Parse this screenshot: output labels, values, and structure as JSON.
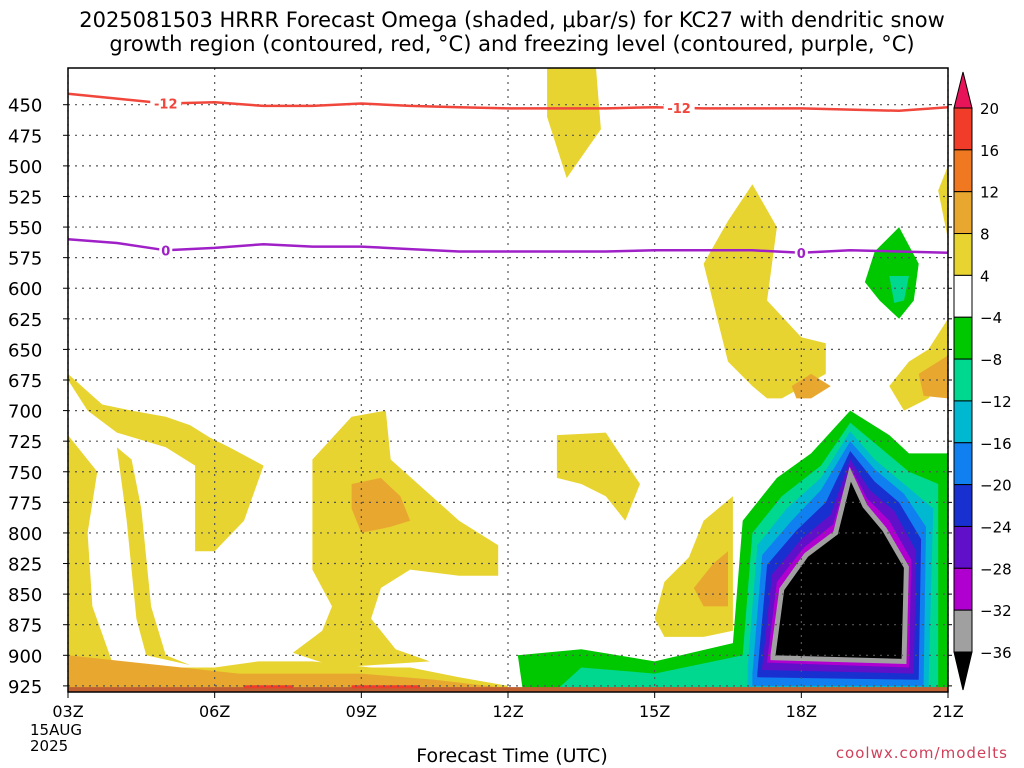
{
  "title_line1": "2025081503 HRRR Forecast Omega (shaded, μbar/s) for KC27 with dendritic snow",
  "title_line2": "growth region (contoured, red, °C) and freezing level (contoured, purple, °C)",
  "xlabel": "Forecast Time (UTC)",
  "credit": "coolwx.com/modelts",
  "date_label": [
    "15AUG",
    "2025"
  ],
  "colors": {
    "dgz_line": "#f0463c",
    "freeze_line": "#a020c8",
    "grid": "#555555"
  },
  "chart_data": {
    "type": "heatmap",
    "title": "2025081503 HRRR Forecast Omega (shaded, μbar/s) for KC27 with dendritic snow growth region (contoured, red, °C) and freezing level (contoured, purple, °C)",
    "xlabel": "Forecast Time (UTC)",
    "ylabel": "",
    "x_ticks": [
      "03Z",
      "06Z",
      "09Z",
      "12Z",
      "15Z",
      "18Z",
      "21Z"
    ],
    "x_hours": [
      3,
      6,
      9,
      12,
      15,
      18,
      21
    ],
    "y_ticks": [
      450,
      475,
      500,
      525,
      550,
      575,
      600,
      625,
      650,
      675,
      700,
      725,
      750,
      775,
      800,
      825,
      850,
      875,
      900,
      925
    ],
    "ylim": [
      420,
      930
    ],
    "grid": true,
    "colorbar": {
      "labels": [
        "20",
        "16",
        "12",
        "8",
        "4",
        "-4",
        "-8",
        "-12",
        "-16",
        "-20",
        "-24",
        "-28",
        "-32",
        "-36"
      ],
      "colors": [
        "#e8145a",
        "#f03c28",
        "#f07820",
        "#e8a830",
        "#e8d430",
        "#ffffff",
        "#00c800",
        "#00d890",
        "#00b8d0",
        "#1080f0",
        "#1830d0",
        "#6010c8",
        "#b000d0",
        "#a0a0a0",
        "#000000"
      ]
    },
    "contours": [
      {
        "label": "-12",
        "points": [
          [
            3,
            441
          ],
          [
            4,
            445
          ],
          [
            5,
            449
          ],
          [
            6,
            448
          ],
          [
            7,
            451
          ],
          [
            8,
            451
          ],
          [
            9,
            449
          ],
          [
            10,
            451
          ],
          [
            11,
            452
          ],
          [
            12,
            453
          ],
          [
            13,
            453
          ],
          [
            14,
            453
          ],
          [
            15,
            452
          ],
          [
            16,
            453
          ],
          [
            17,
            453
          ],
          [
            18,
            453
          ],
          [
            19,
            454
          ],
          [
            20,
            455
          ],
          [
            21,
            452
          ]
        ]
      },
      {
        "label": "0",
        "points": [
          [
            3,
            560
          ],
          [
            4,
            563
          ],
          [
            5,
            569
          ],
          [
            6,
            567
          ],
          [
            7,
            564
          ],
          [
            8,
            566
          ],
          [
            9,
            566
          ],
          [
            10,
            568
          ],
          [
            11,
            570
          ],
          [
            12,
            570
          ],
          [
            13,
            570
          ],
          [
            14,
            570
          ],
          [
            15,
            569
          ],
          [
            16,
            569
          ],
          [
            17,
            569
          ],
          [
            18,
            571
          ],
          [
            19,
            569
          ],
          [
            20,
            570
          ],
          [
            21,
            571
          ]
        ]
      }
    ],
    "regions": [
      {
        "level": "4",
        "points": [
          [
            3,
            675
          ],
          [
            3.4,
            700
          ],
          [
            4,
            718
          ],
          [
            5,
            730
          ],
          [
            5.6,
            745
          ],
          [
            5.6,
            815
          ],
          [
            6,
            815
          ],
          [
            6.6,
            790
          ],
          [
            7,
            745
          ],
          [
            6.3,
            730
          ],
          [
            5.9,
            722
          ],
          [
            5.5,
            712
          ],
          [
            5,
            705
          ],
          [
            4.3,
            700
          ],
          [
            3.7,
            695
          ],
          [
            3,
            670
          ]
        ]
      },
      {
        "level": "4",
        "points": [
          [
            3,
            720
          ],
          [
            3.6,
            750
          ],
          [
            3.4,
            800
          ],
          [
            3.5,
            860
          ],
          [
            3.9,
            905
          ],
          [
            5,
            910
          ],
          [
            6,
            910
          ],
          [
            6.9,
            905
          ],
          [
            8,
            905
          ],
          [
            9.2,
            910
          ],
          [
            10,
            910
          ],
          [
            11,
            918
          ],
          [
            12,
            925
          ],
          [
            12,
            928
          ],
          [
            3,
            928
          ]
        ]
      },
      {
        "level": "4",
        "points": [
          [
            4,
            730
          ],
          [
            4.2,
            790
          ],
          [
            4.4,
            870
          ],
          [
            4.6,
            900
          ],
          [
            5.5,
            908
          ],
          [
            5,
            900
          ],
          [
            4.7,
            860
          ],
          [
            4.5,
            780
          ],
          [
            4.3,
            740
          ]
        ]
      },
      {
        "level": "4",
        "points": [
          [
            8,
            740
          ],
          [
            8.8,
            705
          ],
          [
            9.5,
            700
          ],
          [
            9.6,
            740
          ],
          [
            10.3,
            765
          ],
          [
            11,
            790
          ],
          [
            11.8,
            810
          ],
          [
            11.8,
            835
          ],
          [
            11,
            835
          ],
          [
            10,
            830
          ],
          [
            9.4,
            845
          ],
          [
            9.2,
            870
          ],
          [
            9.7,
            895
          ],
          [
            10.4,
            905
          ],
          [
            8.5,
            910
          ],
          [
            7.6,
            898
          ],
          [
            8.2,
            880
          ],
          [
            8.4,
            860
          ],
          [
            8,
            830
          ],
          [
            8,
            790
          ]
        ]
      },
      {
        "level": "4",
        "points": [
          [
            13.8,
            420
          ],
          [
            13.9,
            470
          ],
          [
            13.2,
            510
          ],
          [
            12.8,
            460
          ],
          [
            12.8,
            420
          ]
        ]
      },
      {
        "level": "4",
        "points": [
          [
            13,
            720
          ],
          [
            14,
            718
          ],
          [
            14.7,
            760
          ],
          [
            14.4,
            790
          ],
          [
            14,
            770
          ],
          [
            13.5,
            760
          ],
          [
            13,
            755
          ]
        ]
      },
      {
        "level": "4",
        "points": [
          [
            16,
            580
          ],
          [
            16.5,
            545
          ],
          [
            17,
            515
          ],
          [
            17.5,
            550
          ],
          [
            17.3,
            610
          ],
          [
            18,
            640
          ],
          [
            18.5,
            645
          ],
          [
            18.5,
            670
          ],
          [
            17.6,
            690
          ],
          [
            17.3,
            690
          ],
          [
            17,
            680
          ],
          [
            16.5,
            660
          ]
        ]
      },
      {
        "level": "4",
        "points": [
          [
            15,
            870
          ],
          [
            15.2,
            840
          ],
          [
            15.7,
            820
          ],
          [
            16,
            790
          ],
          [
            16.6,
            770
          ],
          [
            16.6,
            880
          ],
          [
            16,
            885
          ],
          [
            15.2,
            885
          ]
        ]
      },
      {
        "level": "4",
        "points": [
          [
            21,
            500
          ],
          [
            20.8,
            520
          ],
          [
            21,
            560
          ],
          [
            21,
            625
          ],
          [
            20.6,
            650
          ],
          [
            20.2,
            660
          ],
          [
            19.8,
            680
          ],
          [
            20.1,
            700
          ],
          [
            20.6,
            690
          ],
          [
            21,
            670
          ],
          [
            21,
            505
          ]
        ]
      },
      {
        "level": "8",
        "points": [
          [
            17.8,
            680
          ],
          [
            18.2,
            670
          ],
          [
            18.6,
            680
          ],
          [
            18.2,
            690
          ],
          [
            17.9,
            690
          ]
        ]
      },
      {
        "level": "8",
        "points": [
          [
            8.8,
            760
          ],
          [
            9.4,
            755
          ],
          [
            9.8,
            770
          ],
          [
            10,
            790
          ],
          [
            9.6,
            795
          ],
          [
            9,
            800
          ],
          [
            8.8,
            780
          ]
        ]
      },
      {
        "level": "8",
        "points": [
          [
            15.8,
            845
          ],
          [
            16.2,
            825
          ],
          [
            16.5,
            815
          ],
          [
            16.5,
            860
          ],
          [
            16,
            860
          ]
        ]
      },
      {
        "level": "8",
        "points": [
          [
            20.4,
            670
          ],
          [
            21,
            655
          ],
          [
            21,
            690
          ],
          [
            20.5,
            688
          ]
        ]
      },
      {
        "level": "8",
        "points": [
          [
            3,
            900
          ],
          [
            6.5,
            915
          ],
          [
            9,
            915
          ],
          [
            10.5,
            920
          ],
          [
            12,
            927
          ],
          [
            3,
            928
          ]
        ]
      },
      {
        "level": "-8",
        "points": [
          [
            19.5,
            570
          ],
          [
            20,
            550
          ],
          [
            20.4,
            580
          ],
          [
            20.3,
            610
          ],
          [
            20,
            625
          ],
          [
            19.6,
            610
          ],
          [
            19.3,
            595
          ]
        ]
      },
      {
        "level": "-12",
        "points": [
          [
            19.8,
            590
          ],
          [
            20.2,
            590
          ],
          [
            20.1,
            610
          ],
          [
            19.9,
            612
          ]
        ]
      },
      {
        "level": "-8",
        "points": [
          [
            12.2,
            900
          ],
          [
            13.5,
            895
          ],
          [
            15,
            905
          ],
          [
            16.6,
            890
          ],
          [
            16.8,
            790
          ],
          [
            17.5,
            755
          ],
          [
            18.2,
            735
          ],
          [
            19,
            700
          ],
          [
            19.8,
            720
          ],
          [
            20.2,
            735
          ],
          [
            21,
            735
          ],
          [
            21,
            928
          ],
          [
            12.3,
            928
          ]
        ]
      },
      {
        "level": "-12",
        "points": [
          [
            13.5,
            910
          ],
          [
            15,
            915
          ],
          [
            16.8,
            900
          ],
          [
            17,
            800
          ],
          [
            17.6,
            770
          ],
          [
            18.4,
            745
          ],
          [
            19,
            710
          ],
          [
            19.6,
            730
          ],
          [
            20.2,
            750
          ],
          [
            20.8,
            760
          ],
          [
            20.8,
            928
          ],
          [
            13,
            928
          ]
        ]
      },
      {
        "level": "-16",
        "points": [
          [
            16.9,
            910
          ],
          [
            17.1,
            810
          ],
          [
            17.7,
            780
          ],
          [
            18.4,
            755
          ],
          [
            19,
            717
          ],
          [
            19.5,
            740
          ],
          [
            20.1,
            760
          ],
          [
            20.7,
            780
          ],
          [
            20.6,
            928
          ],
          [
            16.9,
            928
          ]
        ]
      },
      {
        "level": "-20",
        "points": [
          [
            17,
            915
          ],
          [
            17.2,
            818
          ],
          [
            17.8,
            790
          ],
          [
            18.4,
            765
          ],
          [
            19,
            725
          ],
          [
            19.5,
            748
          ],
          [
            20.1,
            768
          ],
          [
            20.55,
            795
          ],
          [
            20.5,
            925
          ],
          [
            17,
            925
          ]
        ]
      },
      {
        "level": "-24",
        "points": [
          [
            17.1,
            915
          ],
          [
            17.3,
            826
          ],
          [
            17.9,
            798
          ],
          [
            18.5,
            775
          ],
          [
            19,
            733
          ],
          [
            19.5,
            758
          ],
          [
            20,
            775
          ],
          [
            20.45,
            805
          ],
          [
            20.4,
            920
          ],
          [
            17.1,
            918
          ]
        ]
      },
      {
        "level": "-28",
        "points": [
          [
            17.2,
            910
          ],
          [
            17.4,
            834
          ],
          [
            18,
            805
          ],
          [
            18.6,
            785
          ],
          [
            19,
            740
          ],
          [
            19.4,
            765
          ],
          [
            19.9,
            782
          ],
          [
            20.35,
            815
          ],
          [
            20.3,
            915
          ],
          [
            17.2,
            912
          ]
        ]
      },
      {
        "level": "-32",
        "points": [
          [
            17.3,
            905
          ],
          [
            17.5,
            840
          ],
          [
            18.05,
            812
          ],
          [
            18.65,
            793
          ],
          [
            19,
            746
          ],
          [
            19.35,
            772
          ],
          [
            19.8,
            790
          ],
          [
            20.25,
            822
          ],
          [
            20.2,
            910
          ],
          [
            17.3,
            906
          ]
        ]
      },
      {
        "level": "-36",
        "points": [
          [
            17.42,
            900
          ],
          [
            17.6,
            846
          ],
          [
            18.1,
            818
          ],
          [
            18.7,
            800
          ],
          [
            19,
            752
          ],
          [
            19.3,
            778
          ],
          [
            19.7,
            797
          ],
          [
            20.15,
            828
          ],
          [
            20.1,
            905
          ],
          [
            17.42,
            902
          ]
        ]
      }
    ]
  }
}
